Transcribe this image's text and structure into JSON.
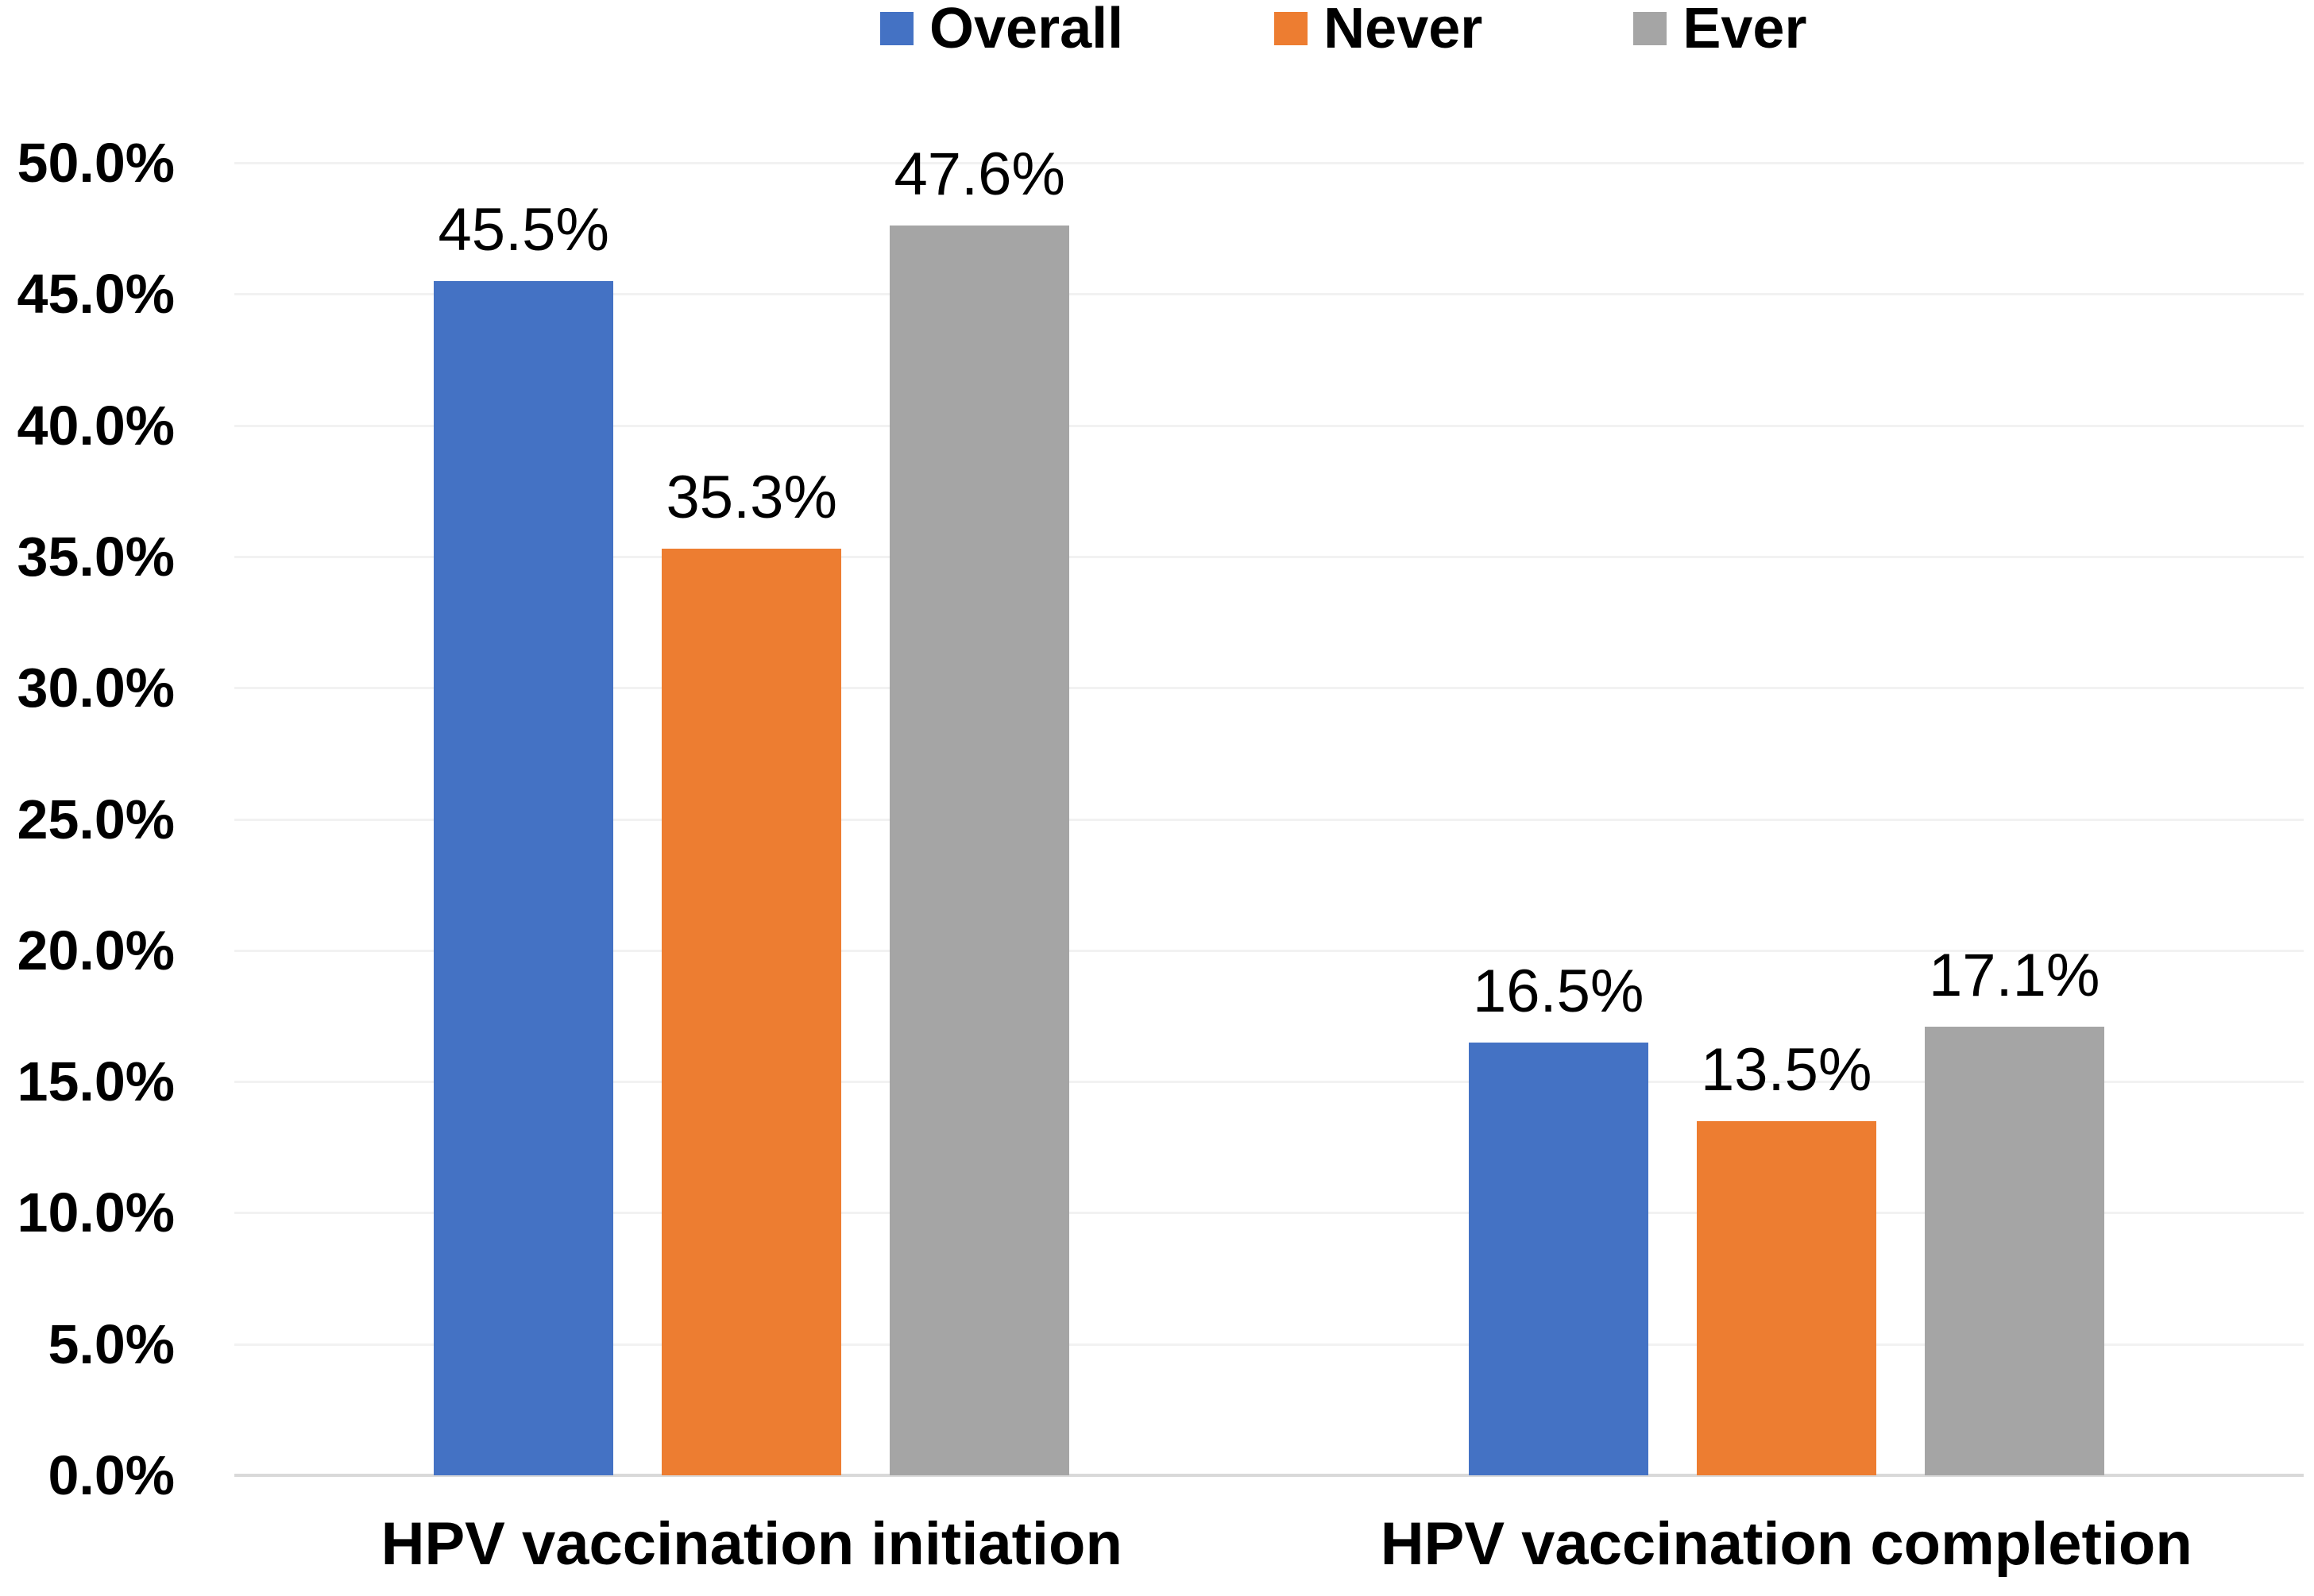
{
  "chart_data": {
    "type": "bar",
    "title": "",
    "xlabel": "",
    "ylabel": "",
    "categories": [
      "HPV vaccination initiation",
      "HPV vaccination completion"
    ],
    "series": [
      {
        "name": "Overall",
        "color": "#4472C4",
        "values": [
          45.5,
          16.5
        ],
        "labels": [
          "45.5%",
          "16.5%"
        ]
      },
      {
        "name": "Never",
        "color": "#ED7D31",
        "values": [
          35.3,
          13.5
        ],
        "labels": [
          "35.3%",
          "13.5%"
        ]
      },
      {
        "name": "Ever",
        "color": "#A5A5A5",
        "values": [
          47.6,
          17.1
        ],
        "labels": [
          "47.6%",
          "17.1%"
        ]
      }
    ],
    "y_ticks": [
      "0.0%",
      "5.0%",
      "10.0%",
      "15.0%",
      "20.0%",
      "25.0%",
      "30.0%",
      "35.0%",
      "40.0%",
      "45.0%",
      "50.0%"
    ],
    "ylim": [
      0,
      50
    ],
    "y_tick_step": 5,
    "grid": true,
    "legend_position": "top"
  },
  "colors": {
    "background": "#FFFFFF",
    "text": "#000000",
    "gridline": "#F2F2F2",
    "axis_line": "#D9D9D9"
  }
}
